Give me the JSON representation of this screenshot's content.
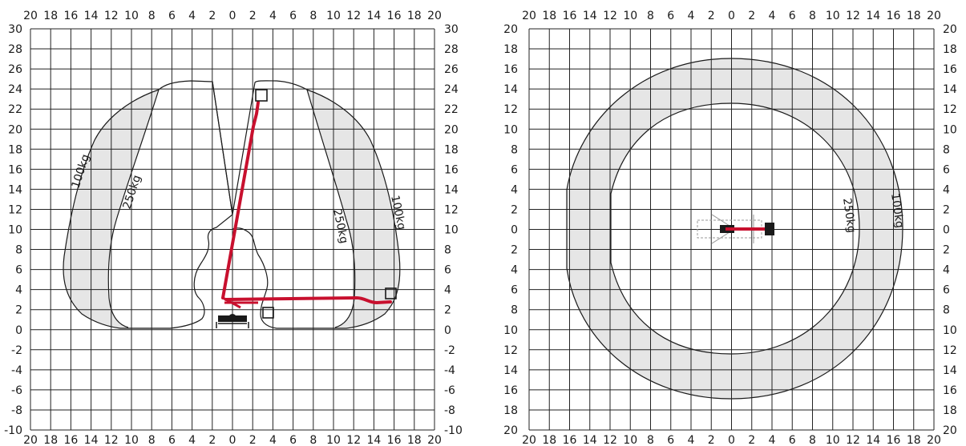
{
  "side_view": {
    "x_ticks": [
      "20",
      "18",
      "16",
      "14",
      "12",
      "10",
      "8",
      "6",
      "4",
      "2",
      "0",
      "2",
      "4",
      "6",
      "8",
      "10",
      "12",
      "14",
      "16",
      "18",
      "20"
    ],
    "y_ticks": [
      "30",
      "28",
      "26",
      "24",
      "22",
      "20",
      "18",
      "16",
      "14",
      "12",
      "10",
      "8",
      "6",
      "4",
      "2",
      "0",
      "-2",
      "-4",
      "-6",
      "-8",
      "-10"
    ],
    "zone_labels": [
      "100kg",
      "250kg",
      "250kg",
      "100kg"
    ]
  },
  "top_view": {
    "x_ticks": [
      "20",
      "18",
      "16",
      "14",
      "12",
      "10",
      "8",
      "6",
      "4",
      "2",
      "0",
      "2",
      "4",
      "6",
      "8",
      "10",
      "12",
      "14",
      "16",
      "18",
      "20"
    ],
    "y_ticks": [
      "20",
      "18",
      "16",
      "14",
      "12",
      "10",
      "8",
      "6",
      "4",
      "2",
      "0",
      "2",
      "4",
      "6",
      "8",
      "10",
      "12",
      "14",
      "16",
      "18",
      "20"
    ],
    "zone_labels": [
      "250kg",
      "100kg"
    ]
  },
  "colors": {
    "grid": "#222222",
    "zone_fill": "#e6e6e6",
    "boom": "#c8102e",
    "machine": "#1a1a1a"
  },
  "icons": [
    "aerial-platform-side-icon",
    "aerial-platform-top-icon"
  ]
}
